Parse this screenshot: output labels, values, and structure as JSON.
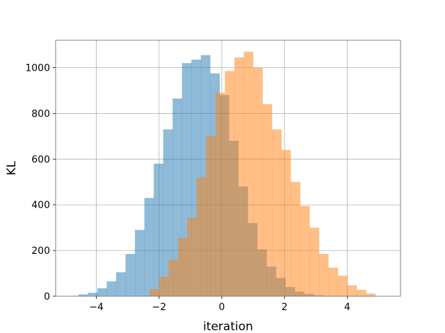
{
  "chart_data": {
    "type": "bar",
    "title": "",
    "xlabel": "iteration",
    "ylabel": "KL",
    "xlim": [
      -5.3,
      5.7
    ],
    "ylim": [
      0,
      1120
    ],
    "xticks": [
      -4,
      -2,
      0,
      2,
      4
    ],
    "yticks": [
      0,
      200,
      400,
      600,
      800,
      1000
    ],
    "xtick_labels": [
      "−4",
      "−2",
      "0",
      "2",
      "4"
    ],
    "ytick_labels": [
      "0",
      "200",
      "400",
      "600",
      "800",
      "1000"
    ],
    "grid": true,
    "legend": "none",
    "series": [
      {
        "color": "#1f77b4",
        "alpha": 0.5,
        "bin_start": -4.57,
        "bin_width": 0.3,
        "counts": [
          8,
          15,
          35,
          65,
          105,
          185,
          290,
          430,
          580,
          730,
          865,
          1020,
          1035,
          1055,
          975,
          880,
          680,
          480,
          320,
          205,
          130,
          80,
          40,
          20,
          10,
          4
        ]
      },
      {
        "color": "#ff7f0e",
        "alpha": 0.5,
        "bin_start": -2.3,
        "bin_width": 0.3,
        "counts": [
          30,
          85,
          160,
          255,
          345,
          520,
          700,
          890,
          985,
          1045,
          1070,
          1000,
          840,
          730,
          640,
          500,
          395,
          300,
          185,
          125,
          90,
          48,
          28,
          12
        ]
      }
    ]
  }
}
